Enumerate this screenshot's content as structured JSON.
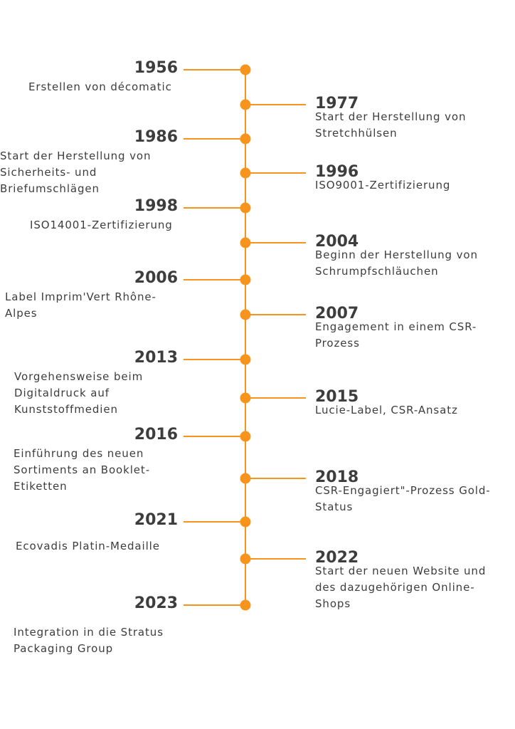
{
  "colors": {
    "accent": "#f7941d",
    "text": "#3d3d3d"
  },
  "events": [
    {
      "year": "1956",
      "side": "left",
      "text": "Erstellen von décomatic"
    },
    {
      "year": "1977",
      "side": "right",
      "text": "Start der Herstellung von\nStretchhülsen"
    },
    {
      "year": "1986",
      "side": "left",
      "text": "Start der Herstellung von\nSicherheits- und\nBriefumschlägen"
    },
    {
      "year": "1996",
      "side": "right",
      "text": "ISO9001-Zertifizierung"
    },
    {
      "year": "1998",
      "side": "left",
      "text": "ISO14001-Zertifizierung"
    },
    {
      "year": "2004",
      "side": "right",
      "text": "Beginn der Herstellung von\nSchrumpfschläuchen"
    },
    {
      "year": "2006",
      "side": "left",
      "text": "Label Imprim'Vert Rhône-\nAlpes"
    },
    {
      "year": "2007",
      "side": "right",
      "text": "Engagement in einem CSR-\nProzess"
    },
    {
      "year": "2013",
      "side": "left",
      "text": "Vorgehensweise beim\nDigitaldruck auf\nKunststoffmedien"
    },
    {
      "year": "2015",
      "side": "right",
      "text": "Lucie-Label, CSR-Ansatz"
    },
    {
      "year": "2016",
      "side": "left",
      "text": "Einführung des neuen\nSortiments an Booklet-\nEtiketten"
    },
    {
      "year": "2018",
      "side": "right",
      "text": "CSR-Engagiert\"-Prozess Gold-\nStatus"
    },
    {
      "year": "2021",
      "side": "left",
      "text": "Ecovadis Platin-Medaille"
    },
    {
      "year": "2022",
      "side": "right",
      "text": "Start der neuen Website und\ndes dazugehörigen Online-\nShops"
    },
    {
      "year": "2023",
      "side": "left",
      "text": "Integration in die Stratus\nPackaging Group"
    }
  ]
}
